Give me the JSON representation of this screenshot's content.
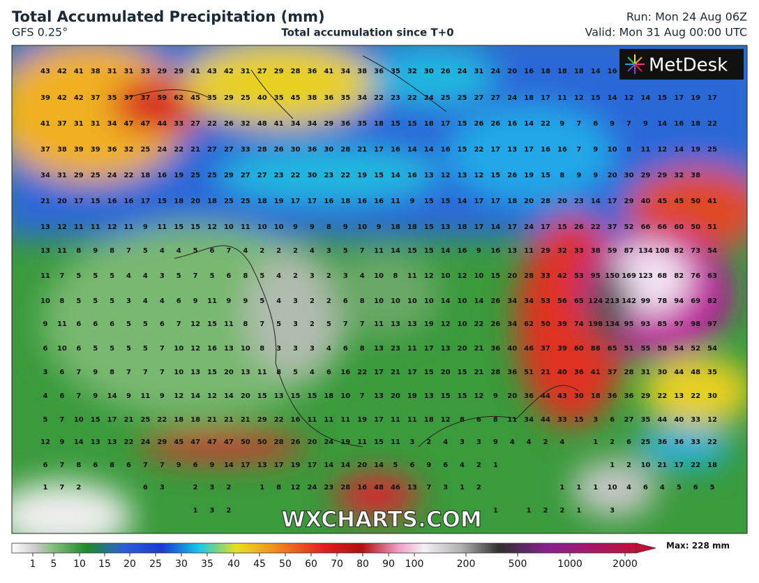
{
  "header": {
    "title": "Total Accumulated Precipitation (mm)",
    "model": "GFS 0.25°",
    "subtitle": "Total accumulation since T+0",
    "run": "Run: Mon 24 Aug 06Z",
    "valid": "Valid: Mon 31 Aug 00:00 UTC"
  },
  "logo": "MetDesk",
  "watermark": "WXCHARTS.COM",
  "map": {
    "rows": [
      [
        43,
        42,
        41,
        38,
        31,
        31,
        33,
        29,
        29,
        41,
        43,
        42,
        31,
        27,
        29,
        28,
        36,
        41,
        34,
        38,
        36,
        35,
        32,
        30,
        26,
        24,
        31,
        24,
        20,
        16,
        18,
        18,
        18,
        14,
        16
      ],
      [
        39,
        42,
        42,
        37,
        35,
        37,
        37,
        59,
        62,
        45,
        35,
        29,
        25,
        40,
        35,
        45,
        38,
        36,
        35,
        34,
        22,
        23,
        22,
        24,
        25,
        25,
        27,
        27,
        24,
        18,
        17,
        11,
        12,
        15,
        14,
        12,
        14,
        15,
        17,
        19,
        17
      ],
      [
        41,
        37,
        31,
        31,
        34,
        47,
        47,
        44,
        33,
        27,
        22,
        26,
        32,
        48,
        41,
        34,
        34,
        29,
        36,
        35,
        18,
        15,
        15,
        18,
        17,
        15,
        26,
        26,
        16,
        14,
        22,
        9,
        7,
        6,
        9,
        7,
        9,
        14,
        16,
        18,
        22
      ],
      [
        37,
        38,
        39,
        39,
        36,
        32,
        25,
        24,
        22,
        21,
        27,
        27,
        33,
        28,
        26,
        30,
        36,
        30,
        28,
        21,
        17,
        16,
        14,
        14,
        16,
        15,
        22,
        17,
        13,
        17,
        16,
        16,
        7,
        9,
        10,
        8,
        11,
        12,
        14,
        19,
        25
      ],
      [
        34,
        31,
        29,
        25,
        24,
        22,
        18,
        16,
        19,
        25,
        25,
        29,
        27,
        27,
        23,
        22,
        30,
        23,
        22,
        19,
        15,
        14,
        16,
        13,
        12,
        13,
        12,
        15,
        26,
        19,
        15,
        8,
        9,
        9,
        20,
        30,
        29,
        29,
        32,
        38
      ],
      [
        21,
        20,
        17,
        15,
        16,
        16,
        17,
        15,
        18,
        20,
        18,
        25,
        25,
        18,
        19,
        17,
        17,
        16,
        18,
        16,
        16,
        11,
        9,
        15,
        15,
        14,
        17,
        17,
        18,
        20,
        28,
        20,
        23,
        14,
        17,
        29,
        40,
        45,
        45,
        50,
        41
      ],
      [
        13,
        12,
        11,
        11,
        12,
        11,
        9,
        11,
        15,
        15,
        12,
        10,
        11,
        10,
        10,
        9,
        9,
        8,
        9,
        10,
        9,
        18,
        18,
        15,
        13,
        18,
        17,
        14,
        17,
        24,
        17,
        15,
        26,
        22,
        37,
        52,
        66,
        66,
        60,
        50,
        51
      ],
      [
        13,
        11,
        8,
        9,
        8,
        7,
        5,
        4,
        4,
        5,
        6,
        7,
        4,
        2,
        2,
        2,
        4,
        3,
        5,
        7,
        11,
        14,
        15,
        15,
        14,
        16,
        9,
        16,
        13,
        11,
        29,
        32,
        33,
        38,
        59,
        87,
        134,
        108,
        82,
        73,
        54
      ],
      [
        11,
        7,
        5,
        5,
        5,
        4,
        4,
        3,
        5,
        7,
        5,
        6,
        8,
        5,
        4,
        2,
        3,
        2,
        3,
        4,
        10,
        8,
        11,
        12,
        10,
        12,
        10,
        15,
        20,
        28,
        33,
        42,
        53,
        95,
        150,
        169,
        123,
        68,
        82,
        76,
        63
      ],
      [
        10,
        8,
        5,
        5,
        5,
        3,
        4,
        4,
        6,
        9,
        11,
        9,
        9,
        5,
        4,
        3,
        2,
        2,
        6,
        8,
        10,
        10,
        10,
        10,
        14,
        10,
        14,
        26,
        34,
        34,
        53,
        56,
        65,
        124,
        213,
        142,
        99,
        78,
        94,
        69,
        82
      ],
      [
        9,
        11,
        6,
        6,
        6,
        5,
        5,
        6,
        7,
        12,
        15,
        11,
        8,
        7,
        5,
        3,
        2,
        5,
        7,
        7,
        11,
        13,
        13,
        19,
        12,
        10,
        22,
        26,
        34,
        62,
        50,
        39,
        74,
        198,
        134,
        95,
        93,
        85,
        97,
        98,
        97
      ],
      [
        6,
        10,
        6,
        5,
        5,
        5,
        5,
        7,
        10,
        12,
        16,
        13,
        10,
        8,
        3,
        3,
        3,
        4,
        6,
        8,
        13,
        23,
        11,
        17,
        13,
        20,
        21,
        36,
        40,
        46,
        37,
        39,
        60,
        88,
        65,
        51,
        55,
        58,
        54,
        52,
        54
      ],
      [
        3,
        6,
        7,
        9,
        8,
        7,
        7,
        7,
        10,
        13,
        15,
        20,
        13,
        11,
        8,
        5,
        4,
        6,
        16,
        22,
        17,
        21,
        17,
        15,
        20,
        15,
        21,
        28,
        36,
        51,
        21,
        40,
        36,
        41,
        37,
        28,
        31,
        30,
        44,
        48,
        35
      ],
      [
        4,
        6,
        7,
        9,
        14,
        9,
        11,
        9,
        12,
        14,
        12,
        14,
        20,
        15,
        13,
        15,
        15,
        18,
        10,
        7,
        13,
        20,
        19,
        13,
        15,
        15,
        12,
        9,
        20,
        36,
        44,
        43,
        30,
        18,
        36,
        36,
        29,
        22,
        13,
        22,
        30
      ],
      [
        5,
        7,
        10,
        15,
        17,
        21,
        25,
        22,
        18,
        18,
        21,
        21,
        21,
        29,
        22,
        16,
        11,
        11,
        11,
        19,
        17,
        11,
        11,
        18,
        12,
        8,
        6,
        8,
        11,
        34,
        44,
        33,
        15,
        3,
        6,
        27,
        35,
        44,
        40,
        33,
        12
      ],
      [
        12,
        9,
        14,
        13,
        13,
        22,
        24,
        29,
        45,
        47,
        47,
        47,
        50,
        50,
        28,
        26,
        20,
        24,
        19,
        11,
        15,
        11,
        3,
        2,
        4,
        3,
        3,
        9,
        4,
        4,
        2,
        4,
        null,
        1,
        2,
        6,
        25,
        36,
        36,
        33,
        22
      ],
      [
        6,
        7,
        8,
        6,
        8,
        6,
        7,
        7,
        9,
        6,
        9,
        14,
        17,
        13,
        17,
        19,
        17,
        14,
        14,
        20,
        14,
        5,
        6,
        9,
        6,
        4,
        2,
        1,
        null,
        null,
        null,
        null,
        null,
        null,
        1,
        2,
        10,
        21,
        17,
        22,
        18
      ],
      [
        1,
        7,
        2,
        null,
        null,
        null,
        6,
        3,
        null,
        2,
        3,
        2,
        null,
        1,
        8,
        12,
        24,
        23,
        28,
        16,
        48,
        46,
        13,
        7,
        3,
        1,
        2,
        null,
        null,
        null,
        null,
        1,
        1,
        1,
        10,
        4,
        6,
        4,
        5,
        6,
        5
      ],
      [
        null,
        null,
        null,
        null,
        null,
        null,
        null,
        null,
        null,
        1,
        3,
        2,
        null,
        null,
        null,
        null,
        null,
        null,
        null,
        null,
        null,
        null,
        null,
        null,
        null,
        null,
        null,
        1,
        null,
        1,
        2,
        2,
        1,
        null,
        3
      ]
    ]
  },
  "colorbar": {
    "labels": [
      1,
      5,
      10,
      15,
      20,
      25,
      30,
      35,
      40,
      45,
      50,
      60,
      70,
      80,
      90,
      100,
      200,
      500,
      1000,
      2000
    ],
    "max": "Max: 228 mm"
  }
}
